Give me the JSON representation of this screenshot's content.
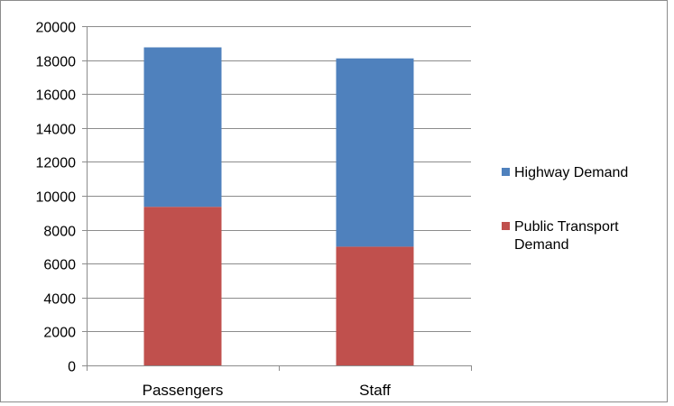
{
  "chart_data": {
    "type": "bar",
    "stacked": true,
    "categories": [
      "Passengers",
      "Staff"
    ],
    "series": [
      {
        "name": "Public Transport Demand",
        "values": [
          9350,
          7000
        ],
        "color": "#c0504d"
      },
      {
        "name": "Highway Demand",
        "values": [
          9400,
          11100
        ],
        "color": "#4f81bd"
      }
    ],
    "ylim": [
      0,
      20000
    ],
    "yticks": [
      0,
      2000,
      4000,
      6000,
      8000,
      10000,
      12000,
      14000,
      16000,
      18000,
      20000
    ],
    "grid": true,
    "legend": {
      "position": "right",
      "entries": [
        {
          "label_lines": [
            "Highway Demand"
          ],
          "color": "#4f81bd"
        },
        {
          "label_lines": [
            "Public Transport",
            "Demand"
          ],
          "color": "#c0504d"
        }
      ]
    },
    "title": "",
    "xlabel": "",
    "ylabel": ""
  }
}
